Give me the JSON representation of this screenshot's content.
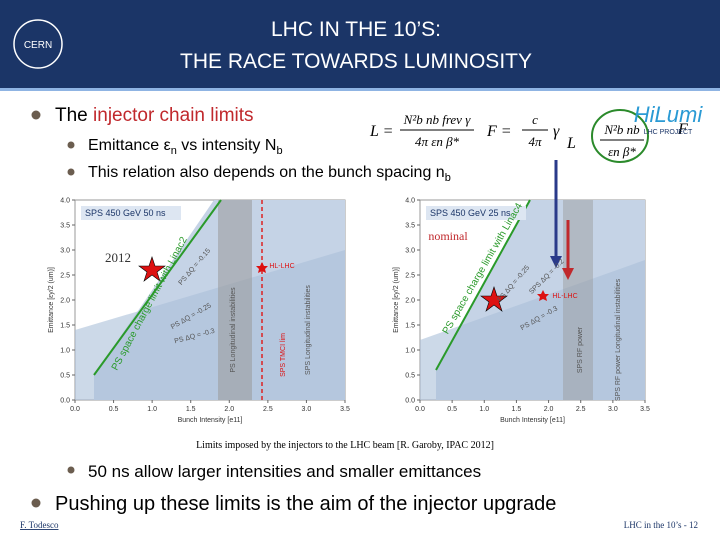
{
  "header": {
    "title_lines": [
      "LHC IN THE 10’S:",
      "THE RACE TOWARDS LUMINOSITY"
    ],
    "logo": "CERN"
  },
  "hilumi_logo": {
    "name": "HiLumi",
    "subtitle": "LHC PROJECT"
  },
  "bullet_1": {
    "lead": "The ",
    "highlight": "injector chain limits"
  },
  "sub_bullets": [
    [
      "Emittance   ε",
      "n",
      " vs  intensity N",
      "b"
    ],
    [
      "This relation also depends on the bunch spacing n",
      "b"
    ]
  ],
  "formulas": {
    "luminosity": {
      "lhs": "L =",
      "num": "N²b nb frev γ",
      "den": "4π εn β*"
    },
    "factor": {
      "lhs": "F =",
      "num": "c",
      "den": "4π",
      "tail": "γ"
    },
    "scaling": {
      "lhs": "L",
      "num": "N²b nb",
      "den": "εn β*",
      "tail": "F"
    }
  },
  "plots": [
    {
      "title": "SPS 450 GeV 50 ns",
      "x_label": "Bunch Intensity [e11]",
      "y_label": "Emittance [εy/2 (um)]",
      "xticks": [
        "0.0",
        "0.5",
        "1.0",
        "1.5",
        "2.0",
        "2.5",
        "3.0",
        "3.5"
      ],
      "yticks": [
        "0.0",
        "0.5",
        "1.0",
        "1.5",
        "2.0",
        "2.5",
        "3.0",
        "3.5",
        "4.0"
      ],
      "annotations": [
        "2012",
        "PS space charge limit with Linac2",
        "HL-LHC",
        "PS ΔQ = -0.15",
        "PS ΔQ = -0.25",
        "PS ΔQ = -0.3",
        "PS Longitudinal instabilities",
        "SPS TMCI lim",
        "SPS Longitudinal instabilities"
      ]
    },
    {
      "title": "SPS 450 GeV 25 ns",
      "x_label": "Bunch Intensity [e11]",
      "y_label": "Emittance [εy/2 (um)]",
      "xticks": [
        "0.0",
        "0.5",
        "1.0",
        "1.5",
        "2.0",
        "2.5",
        "3.0",
        "3.5"
      ],
      "yticks": [
        "0.0",
        "0.5",
        "1.0",
        "1.5",
        "2.0",
        "2.5",
        "3.0",
        "3.5",
        "4.0"
      ],
      "annotations": [
        "nominal",
        "PS space charge limit with Linac4",
        "HL-LHC",
        "PS ΔQ = -0.25",
        "PS ΔQ = -0.3",
        "SPS ΔQ = -0.2",
        "SPS RF power",
        "SPS RF power Longitudinal instabilities"
      ]
    }
  ],
  "caption": "Limits imposed by the injectors to the LHC beam [R. Garoby, IPAC 2012]",
  "bullet_2": "50 ns allow larger intensities and smaller emittances",
  "bullet_3": "Pushing up these limits is the aim of the injector upgrade",
  "footer": {
    "author": "F. Todesco",
    "page": "LHC in the 10’s - 12"
  }
}
